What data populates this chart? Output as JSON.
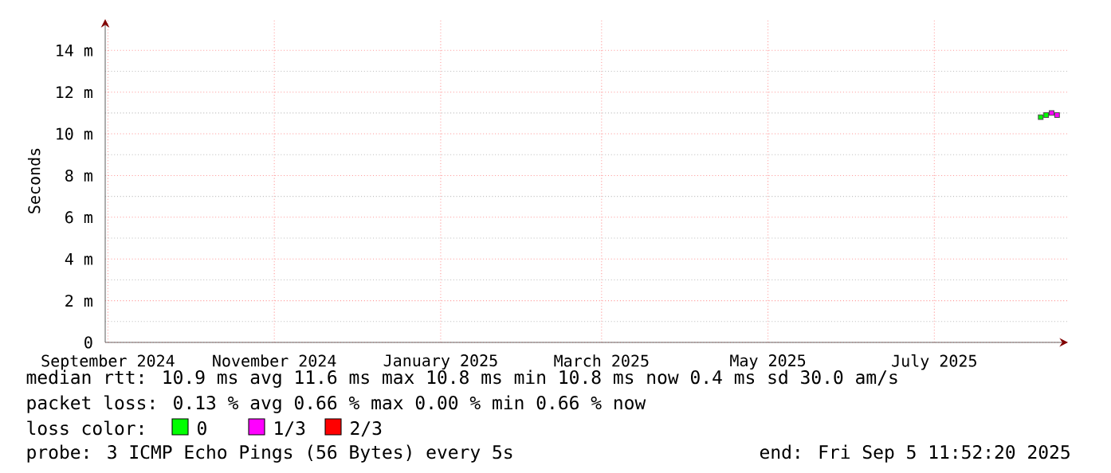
{
  "chart_data": {
    "type": "scatter",
    "ylabel": "Seconds",
    "xlim": [
      "2024-08-31",
      "2025-08-19"
    ],
    "xticks": [
      {
        "value": "2024-09-01",
        "label": "September 2024"
      },
      {
        "value": "2024-11-01",
        "label": "November 2024"
      },
      {
        "value": "2025-01-01",
        "label": "January 2025"
      },
      {
        "value": "2025-03-01",
        "label": "March 2025"
      },
      {
        "value": "2025-05-01",
        "label": "May 2025"
      },
      {
        "value": "2025-07-01",
        "label": "July 2025"
      }
    ],
    "ylim": [
      0,
      15.5
    ],
    "yticks": [
      {
        "value": 0,
        "label": "0"
      },
      {
        "value": 2,
        "label": "2 m"
      },
      {
        "value": 4,
        "label": "4 m"
      },
      {
        "value": 6,
        "label": "6 m"
      },
      {
        "value": 8,
        "label": "8 m"
      },
      {
        "value": 10,
        "label": "10 m"
      },
      {
        "value": 12,
        "label": "12 m"
      },
      {
        "value": 14,
        "label": "14 m"
      }
    ],
    "grid": true,
    "marker": "square",
    "legend": "bottom",
    "legend_title": "loss color:",
    "series": [
      {
        "name": "0",
        "color": "#00ff00",
        "x": [
          "2025-08-09",
          "2025-08-11"
        ],
        "values": [
          10.8,
          10.9
        ]
      },
      {
        "name": "1/3",
        "color": "#ff00ff",
        "x": [
          "2025-08-13",
          "2025-08-15"
        ],
        "values": [
          11.0,
          10.9
        ]
      },
      {
        "name": "2/3",
        "color": "#ff0000"
      }
    ],
    "annotations": [
      "median rtt: 10.9 ms avg 11.6 ms max 10.8 ms min 10.8 ms now 0.4 ms sd 30.0 am/s",
      "packet loss: 0.13 % avg 0.66 % max 0.00 % min 0.66 % now",
      "probe: 3 ICMP Echo Pings (56 Bytes) every 5s",
      "end: Fri Sep 5 11:52:20 2025"
    ]
  }
}
